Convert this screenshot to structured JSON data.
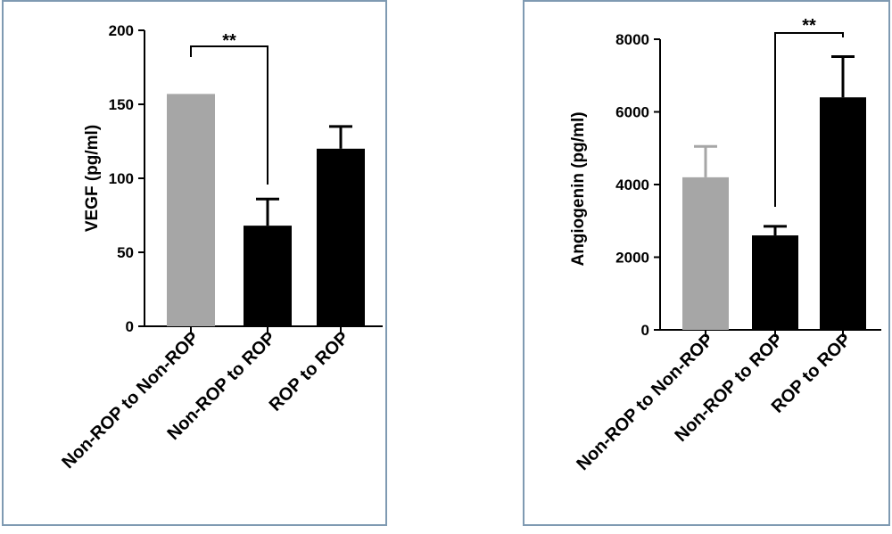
{
  "chart_data": [
    {
      "type": "bar",
      "categories": [
        "Non-ROP to Non-ROP",
        "Non-ROP to ROP",
        "ROP to ROP"
      ],
      "values": [
        157,
        68,
        120
      ],
      "errors": [
        0,
        18,
        15
      ],
      "colors": [
        "#a6a6a6",
        "#000000",
        "#000000"
      ],
      "ylabel": "VEGF (pg/ml)",
      "ylim": [
        0,
        200
      ],
      "yticks": [
        "0",
        "50",
        "100",
        "150",
        "200"
      ],
      "significance": {
        "from": 0,
        "to": 1,
        "label": "**"
      }
    },
    {
      "type": "bar",
      "categories": [
        "Non-ROP to Non-ROP",
        "Non-ROP to ROP",
        "ROP to ROP"
      ],
      "values": [
        4200,
        2600,
        6400
      ],
      "errors": [
        850,
        250,
        1120
      ],
      "colors": [
        "#a6a6a6",
        "#000000",
        "#000000"
      ],
      "ylabel": "Angiogenin (pg/ml)",
      "ylim": [
        0,
        8000
      ],
      "yticks": [
        "0",
        "2000",
        "4000",
        "6000",
        "8000"
      ],
      "significance": {
        "from": 1,
        "to": 2,
        "label": "**"
      }
    }
  ]
}
